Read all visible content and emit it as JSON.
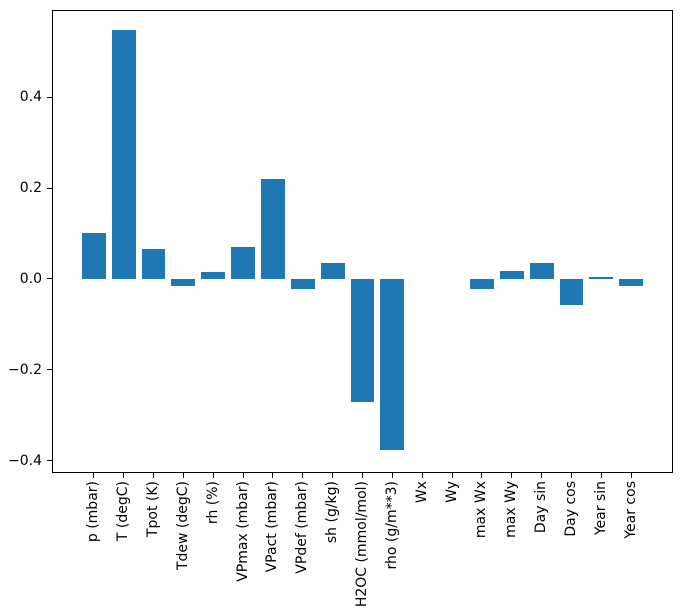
{
  "figure": {
    "background": "#ffffff",
    "spine_color": "#000000",
    "tick_color": "#000000",
    "text_color": "#000000"
  },
  "chart_data": {
    "type": "bar",
    "title": "",
    "xlabel": "",
    "ylabel": "",
    "bar_color": "#1f77b4",
    "grid": false,
    "legend": "none",
    "x_tick_rotation": 90,
    "bar_width": 0.8,
    "xlim": [
      -1.4,
      19.4
    ],
    "ylim": [
      -0.427,
      0.592
    ],
    "categories": [
      "p (mbar)",
      "T (degC)",
      "Tpot (K)",
      "Tdew (degC)",
      "rh (%)",
      "VPmax (mbar)",
      "VPact (mbar)",
      "VPdef (mbar)",
      "sh (g/kg)",
      "H2OC (mmol/mol)",
      "rho (g/m**3)",
      "Wx",
      "Wy",
      "max Wx",
      "max Wy",
      "Day sin",
      "Day cos",
      "Year sin",
      "Year cos"
    ],
    "values": [
      0.102,
      0.548,
      0.067,
      -0.016,
      0.015,
      0.07,
      0.221,
      -0.021,
      0.036,
      -0.27,
      -0.377,
      0.0,
      0.0,
      -0.021,
      0.018,
      0.035,
      -0.057,
      0.004,
      -0.016
    ],
    "yticks": [
      {
        "value": 0.4,
        "label": "0.4"
      },
      {
        "value": 0.2,
        "label": "0.2"
      },
      {
        "value": 0.0,
        "label": "0.0"
      },
      {
        "value": -0.2,
        "label": "−0.2"
      },
      {
        "value": -0.4,
        "label": "−0.4"
      }
    ]
  }
}
